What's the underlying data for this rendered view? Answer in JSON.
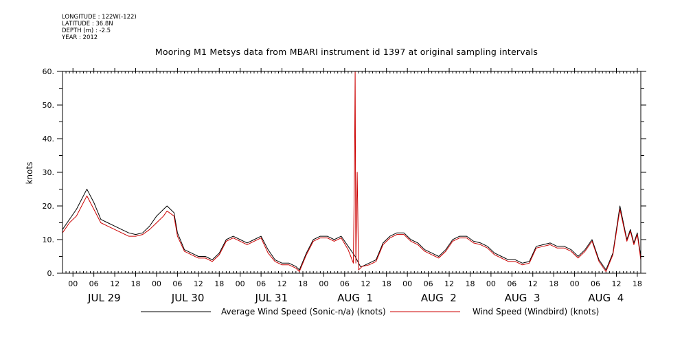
{
  "meta": {
    "longitude": "LONGITUDE : 122W(-122)",
    "latitude": "LATITUDE : 36.8N",
    "depth": "DEPTH (m) : -2.5",
    "year": "YEAR : 2012"
  },
  "chart_data": {
    "type": "line",
    "title": "Mooring M1 Metsys data from MBARI instrument id 1397 at original sampling intervals",
    "xlabel": "",
    "ylabel": "knots",
    "ylim": [
      0,
      60
    ],
    "y_ticks": [
      0,
      10,
      20,
      30,
      40,
      50,
      60
    ],
    "y_tick_labels": [
      "0.",
      "10.",
      "20.",
      "30.",
      "40.",
      "50.",
      "60."
    ],
    "x_unit": "hours since 2012-07-28 21:00",
    "xlim": [
      0,
      166
    ],
    "hour_ticks": [
      {
        "t": 3,
        "label": "00"
      },
      {
        "t": 9,
        "label": "06"
      },
      {
        "t": 15,
        "label": "12"
      },
      {
        "t": 21,
        "label": "18"
      },
      {
        "t": 27,
        "label": "00"
      },
      {
        "t": 33,
        "label": "06"
      },
      {
        "t": 39,
        "label": "12"
      },
      {
        "t": 45,
        "label": "18"
      },
      {
        "t": 51,
        "label": "00"
      },
      {
        "t": 57,
        "label": "06"
      },
      {
        "t": 63,
        "label": "12"
      },
      {
        "t": 69,
        "label": "18"
      },
      {
        "t": 75,
        "label": "00"
      },
      {
        "t": 81,
        "label": "06"
      },
      {
        "t": 87,
        "label": "12"
      },
      {
        "t": 93,
        "label": "18"
      },
      {
        "t": 99,
        "label": "00"
      },
      {
        "t": 105,
        "label": "06"
      },
      {
        "t": 111,
        "label": "12"
      },
      {
        "t": 117,
        "label": "18"
      },
      {
        "t": 123,
        "label": "00"
      },
      {
        "t": 129,
        "label": "06"
      },
      {
        "t": 135,
        "label": "12"
      },
      {
        "t": 141,
        "label": "18"
      },
      {
        "t": 147,
        "label": "00"
      },
      {
        "t": 153,
        "label": "06"
      },
      {
        "t": 159,
        "label": "12"
      },
      {
        "t": 165,
        "label": "18"
      }
    ],
    "day_labels": [
      {
        "t": 12,
        "label": "JUL 29"
      },
      {
        "t": 36,
        "label": "JUL 30"
      },
      {
        "t": 60,
        "label": "JUL 31"
      },
      {
        "t": 84,
        "label": "AUG  1"
      },
      {
        "t": 108,
        "label": "AUG  2"
      },
      {
        "t": 132,
        "label": "AUG  3"
      },
      {
        "t": 156,
        "label": "AUG  4"
      }
    ],
    "series": [
      {
        "name": "Average Wind Speed (Sonic-n/a) (knots)",
        "color": "#000000",
        "x": [
          0,
          2,
          4,
          6,
          7,
          9,
          11,
          13,
          15,
          17,
          19,
          21,
          23,
          25,
          27,
          29,
          30,
          32,
          33,
          35,
          37,
          39,
          41,
          43,
          45,
          47,
          49,
          51,
          53,
          55,
          57,
          59,
          61,
          63,
          65,
          67,
          68,
          70,
          72,
          74,
          76,
          78,
          80,
          82,
          84,
          85.5,
          86,
          88,
          90,
          92,
          94,
          96,
          98,
          100,
          102,
          104,
          106,
          108,
          110,
          112,
          114,
          116,
          118,
          120,
          122,
          124,
          126,
          128,
          130,
          132,
          134,
          136,
          138,
          140,
          142,
          144,
          146,
          148,
          150,
          152,
          154,
          156,
          158,
          160,
          162,
          163,
          164,
          165,
          166
        ],
        "y": [
          13,
          16,
          19,
          23,
          25,
          21,
          16,
          15,
          14,
          13,
          12,
          11.5,
          12,
          14,
          17,
          19,
          20,
          18,
          12,
          7,
          6,
          5,
          5,
          4,
          6,
          10,
          11,
          10,
          9,
          10,
          11,
          7,
          4,
          3,
          3,
          2,
          1,
          6,
          10,
          11,
          11,
          10,
          11,
          8,
          5,
          2,
          2,
          3,
          4,
          9,
          11,
          12,
          12,
          10,
          9,
          7,
          6,
          5,
          7,
          10,
          11,
          11,
          9.5,
          9,
          8,
          6,
          5,
          4,
          4,
          3,
          3.5,
          8,
          8.5,
          9,
          8,
          8,
          7,
          5,
          7,
          10,
          4,
          1,
          6,
          20,
          10,
          13,
          9,
          12,
          5
        ]
      },
      {
        "name": "Wind Speed (Windbird) (knots)",
        "color": "#cc0000",
        "x": [
          0,
          2,
          4,
          6,
          7,
          9,
          11,
          13,
          15,
          17,
          19,
          21,
          23,
          25,
          27,
          29,
          30,
          32,
          33,
          35,
          37,
          39,
          41,
          43,
          45,
          47,
          49,
          51,
          53,
          55,
          57,
          59,
          61,
          63,
          65,
          67,
          68,
          70,
          72,
          74,
          76,
          78,
          80,
          82,
          83.5,
          83.8,
          84,
          84.2,
          84.6,
          85,
          85.5,
          86,
          88,
          90,
          92,
          94,
          96,
          98,
          100,
          102,
          104,
          106,
          108,
          110,
          112,
          114,
          116,
          118,
          120,
          122,
          124,
          126,
          128,
          130,
          132,
          134,
          136,
          138,
          140,
          142,
          144,
          146,
          148,
          150,
          152,
          154,
          156,
          158,
          160,
          162,
          163,
          164,
          165,
          166
        ],
        "y": [
          12,
          15,
          17,
          21,
          23,
          19,
          15,
          14,
          13,
          12,
          11,
          11,
          11.5,
          13,
          15,
          17,
          18.5,
          17,
          11,
          6.5,
          5.5,
          4.5,
          4.5,
          3.5,
          5.5,
          9.5,
          10.5,
          9.5,
          8.5,
          9.5,
          10.5,
          6,
          3.5,
          2.5,
          2.5,
          1.5,
          0.5,
          5.5,
          9.5,
          10.5,
          10.5,
          9.5,
          10.5,
          7,
          3,
          31,
          60,
          3,
          30,
          1,
          1.5,
          2,
          2.5,
          3.5,
          8.5,
          10.5,
          11.5,
          11.5,
          9.5,
          8.5,
          6.5,
          5.5,
          4.5,
          6.5,
          9.5,
          10.5,
          10.5,
          9,
          8.5,
          7.5,
          5.5,
          4.5,
          3.5,
          3.5,
          2.5,
          3,
          7.5,
          8,
          8.5,
          7.5,
          7.5,
          6.5,
          4.5,
          6.5,
          9.5,
          3.5,
          0.5,
          5.5,
          19,
          9.5,
          12.5,
          8.5,
          11.5,
          4
        ]
      }
    ],
    "legend_position": "bottom"
  }
}
